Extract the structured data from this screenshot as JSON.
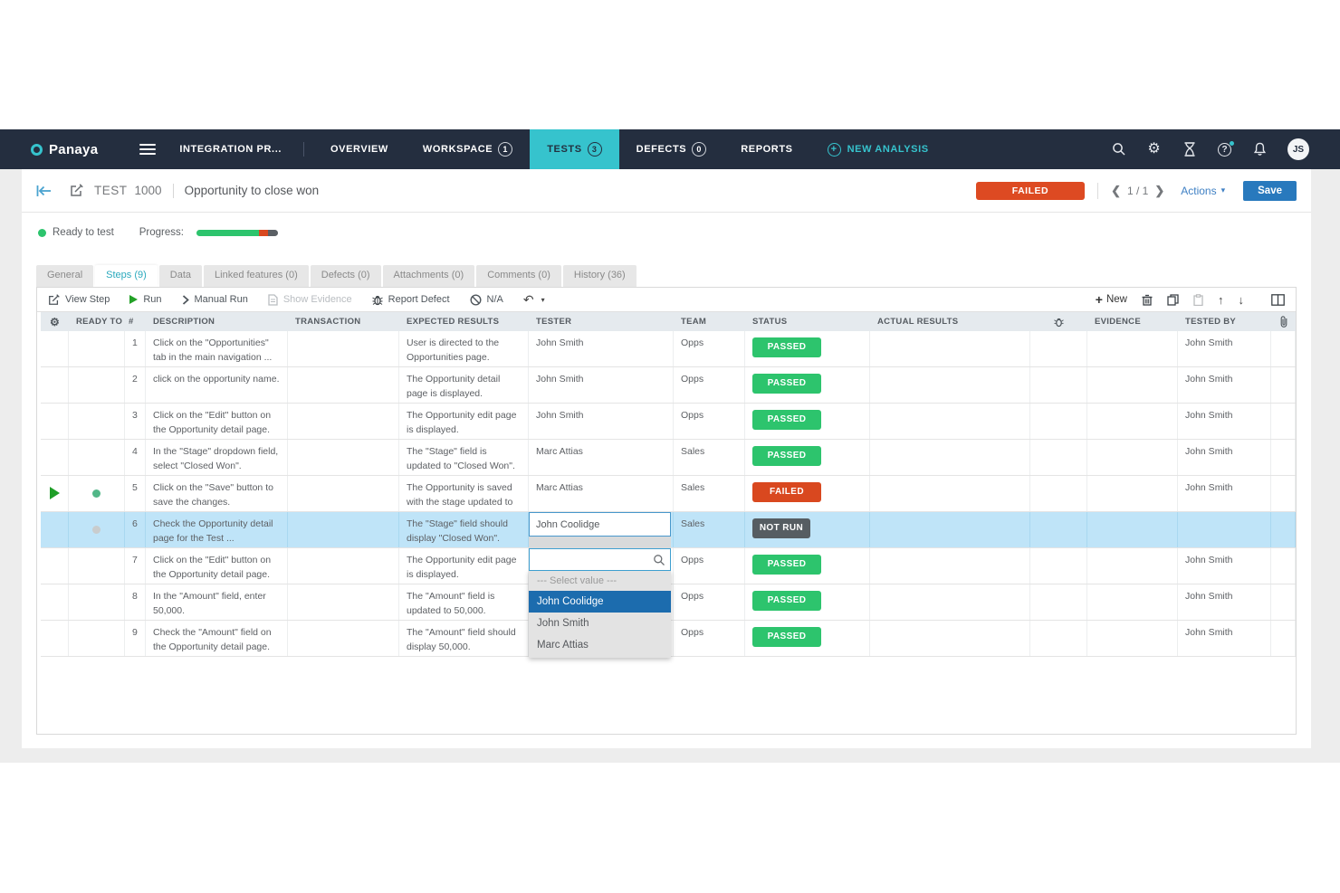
{
  "nav": {
    "brand": "Panaya",
    "project": "INTEGRATION PR...",
    "items": [
      {
        "label": "OVERVIEW"
      },
      {
        "label": "WORKSPACE",
        "badge": "1"
      },
      {
        "label": "TESTS",
        "badge": "3"
      },
      {
        "label": "DEFECTS",
        "badge": "0"
      },
      {
        "label": "REPORTS"
      }
    ],
    "new_analysis": "NEW ANALYSIS",
    "avatar": "JS"
  },
  "header": {
    "entity": "TEST",
    "id": "1000",
    "title": "Opportunity to close won",
    "status": "FAILED",
    "page_indicator": "1 / 1",
    "actions": "Actions",
    "save": "Save"
  },
  "summary": {
    "state": "Ready to test",
    "progress_label": "Progress:",
    "progress_passed_pct": 77,
    "progress_failed_pct": 11,
    "progress_notrun_pct": 12
  },
  "tabs": {
    "general": "General",
    "steps": "Steps (9)",
    "data": "Data",
    "linked": "Linked features (0)",
    "defects": "Defects (0)",
    "attachments": "Attachments (0)",
    "comments": "Comments (0)",
    "history": "History (36)"
  },
  "toolbar": {
    "view_step": "View Step",
    "run": "Run",
    "manual_run": "Manual Run",
    "show_evidence": "Show Evidence",
    "report_defect": "Report Defect",
    "na": "N/A",
    "new": "New"
  },
  "table": {
    "header": {
      "ready_to": "READY TO",
      "num": "#",
      "description": "DESCRIPTION",
      "transaction": "TRANSACTION",
      "expected": "EXPECTED RESULTS",
      "tester": "TESTER",
      "team": "TEAM",
      "status": "STATUS",
      "actual": "ACTUAL RESULTS",
      "evidence": "EVIDENCE",
      "tested_by": "TESTED BY"
    },
    "rows": [
      {
        "num": "1",
        "description": "Click on the \"Opportunities\" tab in the main navigation ...",
        "expected": "User is directed to the Opportunities page.",
        "tester": "John Smith",
        "team": "Opps",
        "status": "PASSED",
        "tested_by": "John Smith"
      },
      {
        "num": "2",
        "description": "click on the opportunity name.",
        "expected": "The Opportunity detail page is displayed.",
        "tester": "John Smith",
        "team": "Opps",
        "status": "PASSED",
        "tested_by": "John Smith"
      },
      {
        "num": "3",
        "description": "Click on the \"Edit\" button on the Opportunity detail page.",
        "expected": "The Opportunity edit page is displayed.",
        "tester": "John Smith",
        "team": "Opps",
        "status": "PASSED",
        "tested_by": "John Smith"
      },
      {
        "num": "4",
        "description": "In the \"Stage\" dropdown field, select \"Closed Won\".",
        "expected": "The \"Stage\" field is updated to \"Closed Won\".",
        "tester": "Marc Attias",
        "team": "Sales",
        "status": "PASSED",
        "tested_by": "John Smith"
      },
      {
        "num": "5",
        "description": "Click on the \"Save\" button to save the changes.",
        "expected": "The Opportunity is saved with the stage updated to ...",
        "tester": "Marc Attias",
        "team": "Sales",
        "status": "FAILED",
        "tested_by": "John Smith"
      },
      {
        "num": "6",
        "description": "Check the Opportunity detail page for the Test ...",
        "expected": "The \"Stage\" field should display \"Closed Won\".",
        "tester": "",
        "team": "Sales",
        "status": "NOT RUN",
        "tested_by": ""
      },
      {
        "num": "7",
        "description": "Click on the \"Edit\" button on the Opportunity detail page.",
        "expected": "The Opportunity edit page is displayed.",
        "tester": "",
        "team": "Opps",
        "status": "PASSED",
        "tested_by": "John Smith"
      },
      {
        "num": "8",
        "description": "In the \"Amount\" field, enter 50,000.",
        "expected": "The \"Amount\" field is updated to 50,000.",
        "tester": "",
        "team": "Opps",
        "status": "PASSED",
        "tested_by": "John Smith"
      },
      {
        "num": "9",
        "description": "Check the \"Amount\" field on the Opportunity detail page.",
        "expected": "The \"Amount\" field should display 50,000.",
        "tester": "",
        "team": "Opps",
        "status": "PASSED",
        "tested_by": "John Smith"
      }
    ]
  },
  "tester_dropdown": {
    "value": "John Coolidge",
    "select_hint": "--- Select value ---",
    "options": [
      "John Coolidge",
      "John Smith",
      "Marc Attias"
    ],
    "selected": "John Coolidge"
  },
  "colors": {
    "navy": "#242e3f",
    "teal_accent": "#36c3cd",
    "passed_green": "#2dc46d",
    "failed_red": "#d9481f",
    "notrun_gray": "#565d62",
    "save_blue": "#2879bd",
    "selected_row_blue": "#bfe4f8",
    "dropdown_selected_blue": "#1c6cae"
  }
}
